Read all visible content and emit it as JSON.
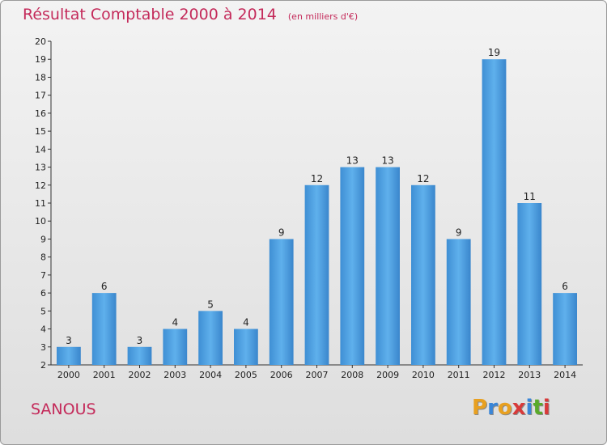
{
  "chart_data": {
    "type": "bar",
    "title": "Résultat Comptable 2000 à 2014",
    "subtitle": "(en milliers d'€)",
    "xlabel": "",
    "ylabel": "",
    "categories": [
      "2000",
      "2001",
      "2002",
      "2003",
      "2004",
      "2005",
      "2006",
      "2007",
      "2008",
      "2009",
      "2010",
      "2011",
      "2012",
      "2013",
      "2014"
    ],
    "values": [
      3,
      6,
      3,
      4,
      5,
      4,
      9,
      12,
      13,
      13,
      12,
      9,
      19,
      11,
      6
    ],
    "ylim": [
      2,
      20
    ],
    "yticks": [
      2,
      3,
      4,
      5,
      6,
      7,
      8,
      9,
      10,
      11,
      12,
      13,
      14,
      15,
      16,
      17,
      18,
      19,
      20
    ],
    "grid": false,
    "bar_color": "#4a9ee0"
  },
  "footer": {
    "commune": "SANOUS",
    "brand_letters": [
      "P",
      "r",
      "o",
      "x",
      "i",
      "t",
      "i"
    ],
    "brand_colors": [
      "#e8a020",
      "#3a86d8",
      "#e8a020",
      "#d83a3a",
      "#3a86d8",
      "#5aaa2a",
      "#d83a3a"
    ]
  }
}
